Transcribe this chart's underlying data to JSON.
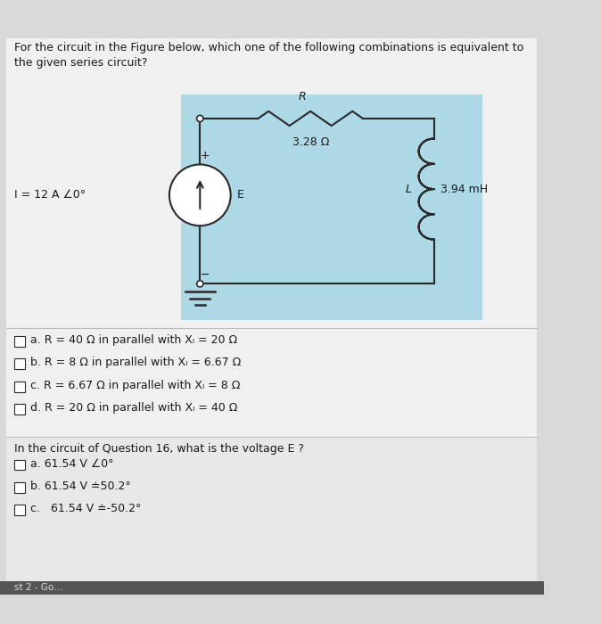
{
  "page_bg": "#d8d8d8",
  "white_bg": "#f0f0f0",
  "circuit_bg": "#add8e6",
  "q2_bg": "#e8e8e8",
  "title_text": "For the circuit in the Figure below, which one of the following combinations is equivalent to\nthe given series circuit?",
  "question2_text": "In the circuit of Question 16, what is the voltage E ?",
  "R_label": "R",
  "R_value": "3.28 Ω",
  "L_label": "L",
  "L_value": "3.94 mH",
  "I_label": "I = 12 A ∠0°",
  "E_label": "E",
  "plus_label": "+",
  "minus_label": "−",
  "options_q1": [
    "a. R = 40 Ω in parallel with Xₗ = 20 Ω",
    "b. R = 8 Ω in parallel with Xₗ = 6.67 Ω",
    "c. R = 6.67 Ω in parallel with Xₗ = 8 Ω",
    "d. R = 20 Ω in parallel with Xₗ = 40 Ω"
  ],
  "options_q2": [
    "a. 61.54 V ∠0°",
    "b. 61.54 V ≐50.2°",
    "c.   61.54 V ≐-50.2°"
  ],
  "line_color": "#2a2a2a",
  "text_color": "#1a1a1a",
  "title_fontsize": 9.0,
  "label_fontsize": 9.0,
  "option_fontsize": 9.0,
  "bottom_text": "st 2 - Go..."
}
